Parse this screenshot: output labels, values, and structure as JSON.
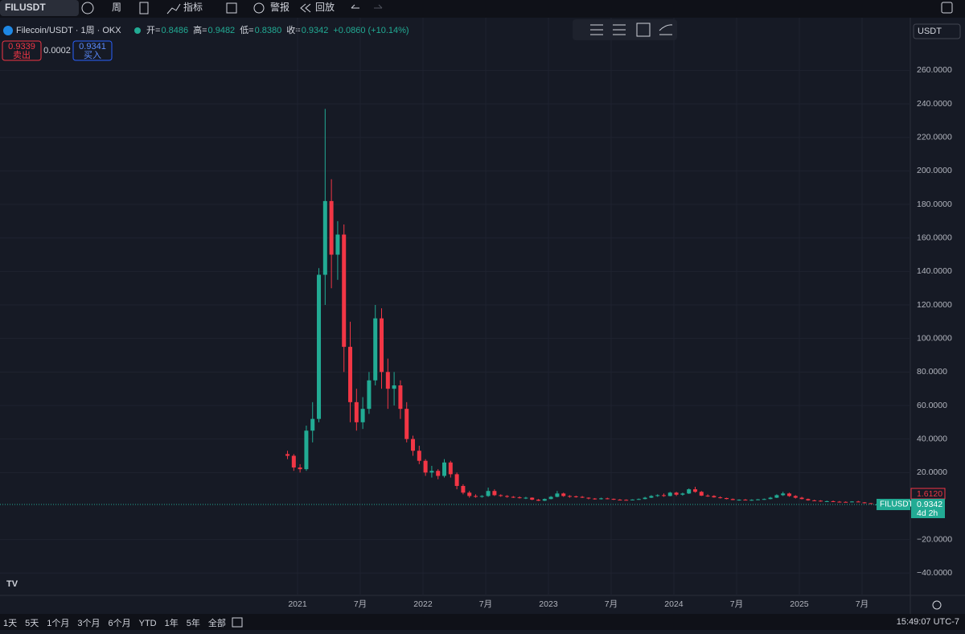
{
  "ui": {
    "symbol": "FILUSDT",
    "interval": "周",
    "indicators": "指标",
    "alert": "警报",
    "replay": "回放",
    "legend_title": "Filecoin/USDT · 1周 · OKX",
    "ohlc": [
      {
        "label": "开=",
        "value": "0.8486"
      },
      {
        "label": "高=",
        "value": "0.9482"
      },
      {
        "label": "低=",
        "value": "0.8380"
      },
      {
        "label": "收=",
        "value": "0.9342"
      }
    ],
    "change": "+0.0860 (+10.14%)",
    "sell_price": "0.9339",
    "sell": "卖出",
    "spread": "0.0002",
    "buy_price": "0.9341",
    "buy": "买入",
    "currency": "USDT",
    "high_label": "1.6120",
    "countdown": "4d 2h",
    "ranges": [
      "1天",
      "5天",
      "1个月",
      "3个月",
      "6个月",
      "YTD",
      "1年",
      "5年",
      "全部"
    ],
    "clock": "15:49:07 UTC-7"
  },
  "chart_data": {
    "type": "candlestick",
    "name": "FILUSDT",
    "up_color": "#22ab94",
    "down_color": "#f23645",
    "grid": true,
    "xlim": [
      2018.628,
      2025.885
    ],
    "ylim": [
      -53.3,
      291.4
    ],
    "xticks": [
      {
        "value": 2021,
        "label": "2021"
      },
      {
        "value": 2021.5,
        "label": "7月"
      },
      {
        "value": 2022,
        "label": "2022"
      },
      {
        "value": 2022.5,
        "label": "7月"
      },
      {
        "value": 2023,
        "label": "2023"
      },
      {
        "value": 2023.5,
        "label": "7月"
      },
      {
        "value": 2024,
        "label": "2024"
      },
      {
        "value": 2024.5,
        "label": "7月"
      },
      {
        "value": 2025,
        "label": "2025"
      },
      {
        "value": 2025.5,
        "label": "7月"
      }
    ],
    "yticks": [
      {
        "value": 260,
        "label": "260.0000"
      },
      {
        "value": 240,
        "label": "240.0000"
      },
      {
        "value": 220,
        "label": "220.0000"
      },
      {
        "value": 200,
        "label": "200.0000"
      },
      {
        "value": 180,
        "label": "180.0000"
      },
      {
        "value": 160,
        "label": "160.0000"
      },
      {
        "value": 140,
        "label": "140.0000"
      },
      {
        "value": 120,
        "label": "120.0000"
      },
      {
        "value": 100,
        "label": "100.0000"
      },
      {
        "value": 80,
        "label": "80.0000"
      },
      {
        "value": 60,
        "label": "60.0000"
      },
      {
        "value": 40,
        "label": "40.0000"
      },
      {
        "value": 20,
        "label": "20.0000"
      },
      {
        "value": -20,
        "label": "−20.0000"
      },
      {
        "value": -40,
        "label": "−40.0000"
      }
    ],
    "last_price": 0.9342,
    "x": [
      2020.92,
      2020.97,
      2021.02,
      2021.07,
      2021.12,
      2021.17,
      2021.22,
      2021.27,
      2021.32,
      2021.37,
      2021.42,
      2021.47,
      2021.52,
      2021.57,
      2021.62,
      2021.67,
      2021.72,
      2021.77,
      2021.82,
      2021.87,
      2021.92,
      2021.97,
      2022.02,
      2022.07,
      2022.12,
      2022.17,
      2022.22,
      2022.27,
      2022.32,
      2022.37,
      2022.42,
      2022.47,
      2022.52,
      2022.57,
      2022.62,
      2022.67,
      2022.72,
      2022.77,
      2022.82,
      2022.87,
      2022.92,
      2022.97,
      2023.02,
      2023.07,
      2023.12,
      2023.17,
      2023.22,
      2023.27,
      2023.32,
      2023.37,
      2023.42,
      2023.47,
      2023.52,
      2023.57,
      2023.62,
      2023.67,
      2023.72,
      2023.77,
      2023.82,
      2023.87,
      2023.92,
      2023.97,
      2024.02,
      2024.07,
      2024.12,
      2024.17,
      2024.22,
      2024.27,
      2024.32,
      2024.37,
      2024.42,
      2024.47,
      2024.52,
      2024.57,
      2024.62,
      2024.67,
      2024.72,
      2024.77,
      2024.82,
      2024.87,
      2024.92,
      2024.97,
      2025.02,
      2025.07,
      2025.12,
      2025.17,
      2025.22,
      2025.27,
      2025.32,
      2025.37,
      2025.42,
      2025.47,
      2025.52,
      2025.57,
      2025.62
    ],
    "open": [
      31,
      30,
      23,
      22,
      45,
      52,
      138,
      182,
      150,
      162,
      95,
      62,
      50,
      58,
      75,
      112,
      80,
      70,
      72,
      58,
      40,
      33,
      27,
      20,
      21,
      18,
      26,
      19,
      12,
      8,
      6,
      5.5,
      6,
      9,
      6.5,
      6,
      5.5,
      5.2,
      4.8,
      5,
      3.8,
      3.2,
      4.2,
      5.5,
      7.5,
      6,
      5.8,
      5.5,
      5,
      4.5,
      4.2,
      4.6,
      4.3,
      3.8,
      3.7,
      3.6,
      3.9,
      4.2,
      5,
      6,
      6.5,
      6,
      8,
      6.8,
      7.5,
      10,
      8.5,
      6.2,
      6,
      5.2,
      4.8,
      4.2,
      3.6,
      3.8,
      3.5,
      3.7,
      4,
      4.2,
      5,
      6.5,
      7.5,
      6,
      5,
      4.2,
      3.4,
      3.2,
      2.8,
      2.9,
      2.6,
      2.5,
      2.4,
      2.7,
      2.2,
      1.7,
      0.8486
    ],
    "high": [
      33,
      31,
      25,
      48,
      62,
      142,
      237,
      195,
      170,
      168,
      110,
      70,
      65,
      80,
      120,
      118,
      88,
      80,
      75,
      62,
      42,
      36,
      28,
      24,
      22,
      28,
      27,
      20,
      13,
      9,
      7,
      6.5,
      11,
      10,
      7,
      6.5,
      6,
      5.8,
      5.5,
      5.2,
      4.2,
      4.5,
      6,
      9,
      8,
      6.5,
      6.2,
      6,
      5.2,
      4.8,
      5,
      5,
      4.5,
      4.2,
      4,
      4,
      4.5,
      5.5,
      6.5,
      7,
      7.5,
      8.5,
      8.5,
      8,
      10.5,
      11.5,
      9,
      7,
      6.5,
      5.8,
      5,
      4.5,
      4,
      4.2,
      4,
      4.2,
      4.5,
      5.5,
      7,
      8.5,
      8,
      6.5,
      5.5,
      4.5,
      3.8,
      3.5,
      3.2,
      3.3,
      3,
      2.8,
      2.9,
      3.1,
      2.4,
      1.8,
      0.9482
    ],
    "low": [
      28,
      21,
      20,
      21,
      38,
      50,
      120,
      130,
      135,
      80,
      50,
      45,
      46,
      55,
      72,
      70,
      58,
      60,
      52,
      38,
      30,
      25,
      18,
      17,
      16,
      17,
      17,
      10,
      7,
      5,
      5,
      5,
      5.5,
      6,
      5.5,
      5,
      4.8,
      4.5,
      4.2,
      3.5,
      3,
      3,
      4,
      5.2,
      5.5,
      5,
      5,
      4.8,
      4,
      3.8,
      3.9,
      4,
      3.6,
      3.5,
      3.3,
      3.4,
      3.7,
      4,
      4.8,
      5.5,
      5.5,
      5.8,
      6,
      6.2,
      7.2,
      8,
      6,
      5.5,
      5,
      4.5,
      4,
      3.5,
      3.2,
      3.4,
      3.2,
      3.5,
      3.7,
      4,
      4.8,
      6,
      5.5,
      4.5,
      4,
      3.2,
      3,
      2.6,
      2.5,
      2.4,
      2.3,
      2.2,
      2.3,
      2.4,
      1.6,
      1.5,
      0.838
    ],
    "close": [
      30,
      23,
      22,
      45,
      52,
      138,
      182,
      150,
      162,
      95,
      62,
      50,
      58,
      75,
      112,
      80,
      70,
      72,
      58,
      40,
      33,
      27,
      20,
      21,
      18,
      26,
      19,
      12,
      8,
      6,
      5.5,
      6,
      9,
      6.5,
      6,
      5.5,
      5.2,
      4.8,
      5,
      3.8,
      3.2,
      4.2,
      5.5,
      7.5,
      6,
      5.8,
      5.5,
      5,
      4.5,
      4.2,
      4.6,
      4.3,
      3.8,
      3.7,
      3.6,
      3.9,
      4.2,
      5,
      6,
      6.5,
      6,
      8,
      6.8,
      7.5,
      10,
      8.5,
      6.2,
      6,
      5.2,
      4.8,
      4.2,
      3.6,
      3.8,
      3.5,
      3.7,
      4,
      4.2,
      5,
      6.5,
      7.5,
      6,
      5,
      4.2,
      3.4,
      3.2,
      2.8,
      2.9,
      2.6,
      2.5,
      2.4,
      2.7,
      2.2,
      1.7,
      1.6,
      0.9342
    ]
  }
}
